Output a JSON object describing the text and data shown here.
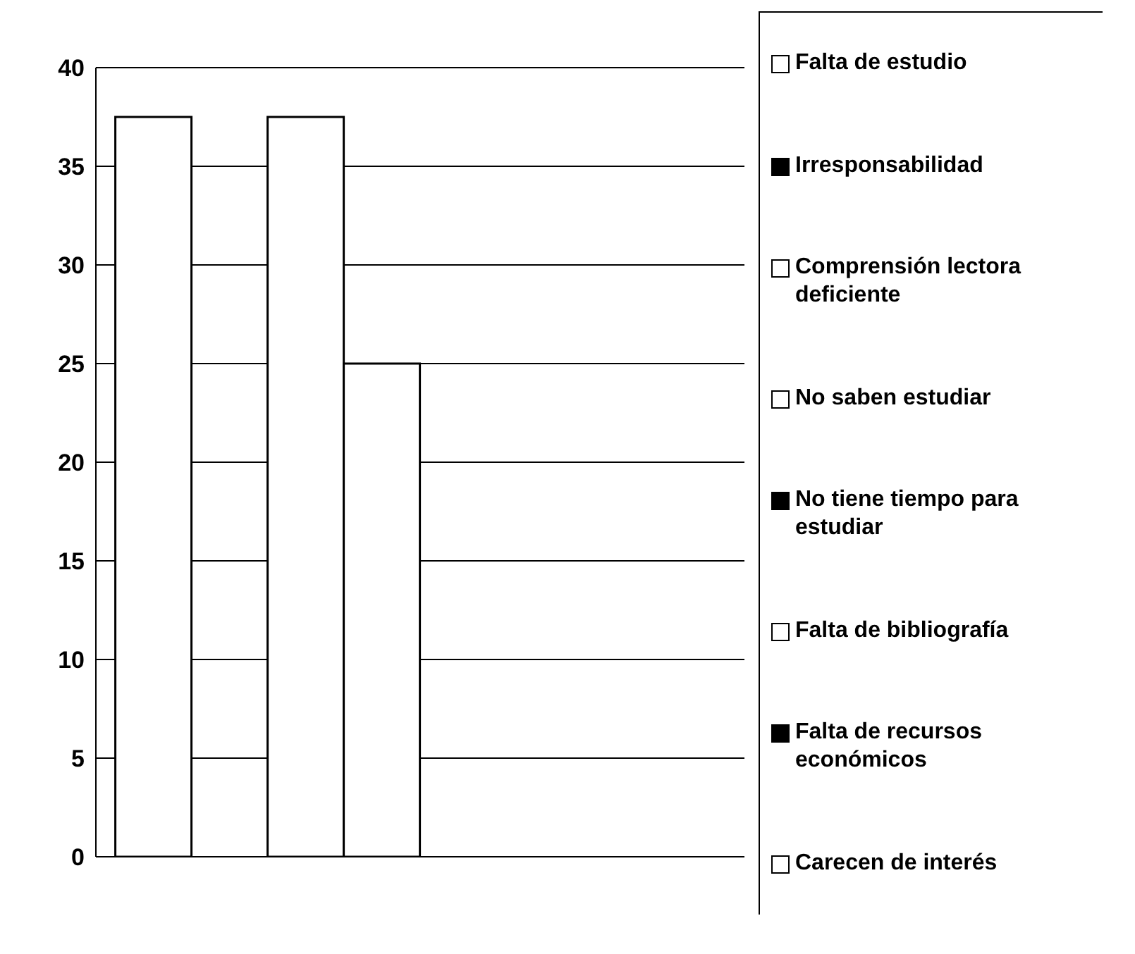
{
  "chart_data": {
    "type": "bar",
    "categories": [
      null
    ],
    "series": [
      {
        "name": "Falta de estudio",
        "color": "#ffffff",
        "values": [
          37.5
        ]
      },
      {
        "name": "Irresponsabilidad",
        "color": "#000000",
        "values": [
          0
        ]
      },
      {
        "name": "Comprensión lectora deficiente",
        "color": "#ffffff",
        "values": [
          37.5
        ]
      },
      {
        "name": "No saben estudiar",
        "color": "#ffffff",
        "values": [
          25
        ]
      },
      {
        "name": "No tiene tiempo para estudiar",
        "color": "#000000",
        "values": [
          0
        ]
      },
      {
        "name": "Falta de bibliografía",
        "color": "#ffffff",
        "values": [
          0
        ]
      },
      {
        "name": "Falta de recursos económicos",
        "color": "#000000",
        "values": [
          0
        ]
      },
      {
        "name": "Carecen de interés",
        "color": "#ffffff",
        "values": [
          0
        ]
      }
    ],
    "ylim": [
      0,
      40
    ],
    "yticks": [
      0,
      5,
      10,
      15,
      20,
      25,
      30,
      35,
      40
    ],
    "grid": "y",
    "legend": "right"
  }
}
